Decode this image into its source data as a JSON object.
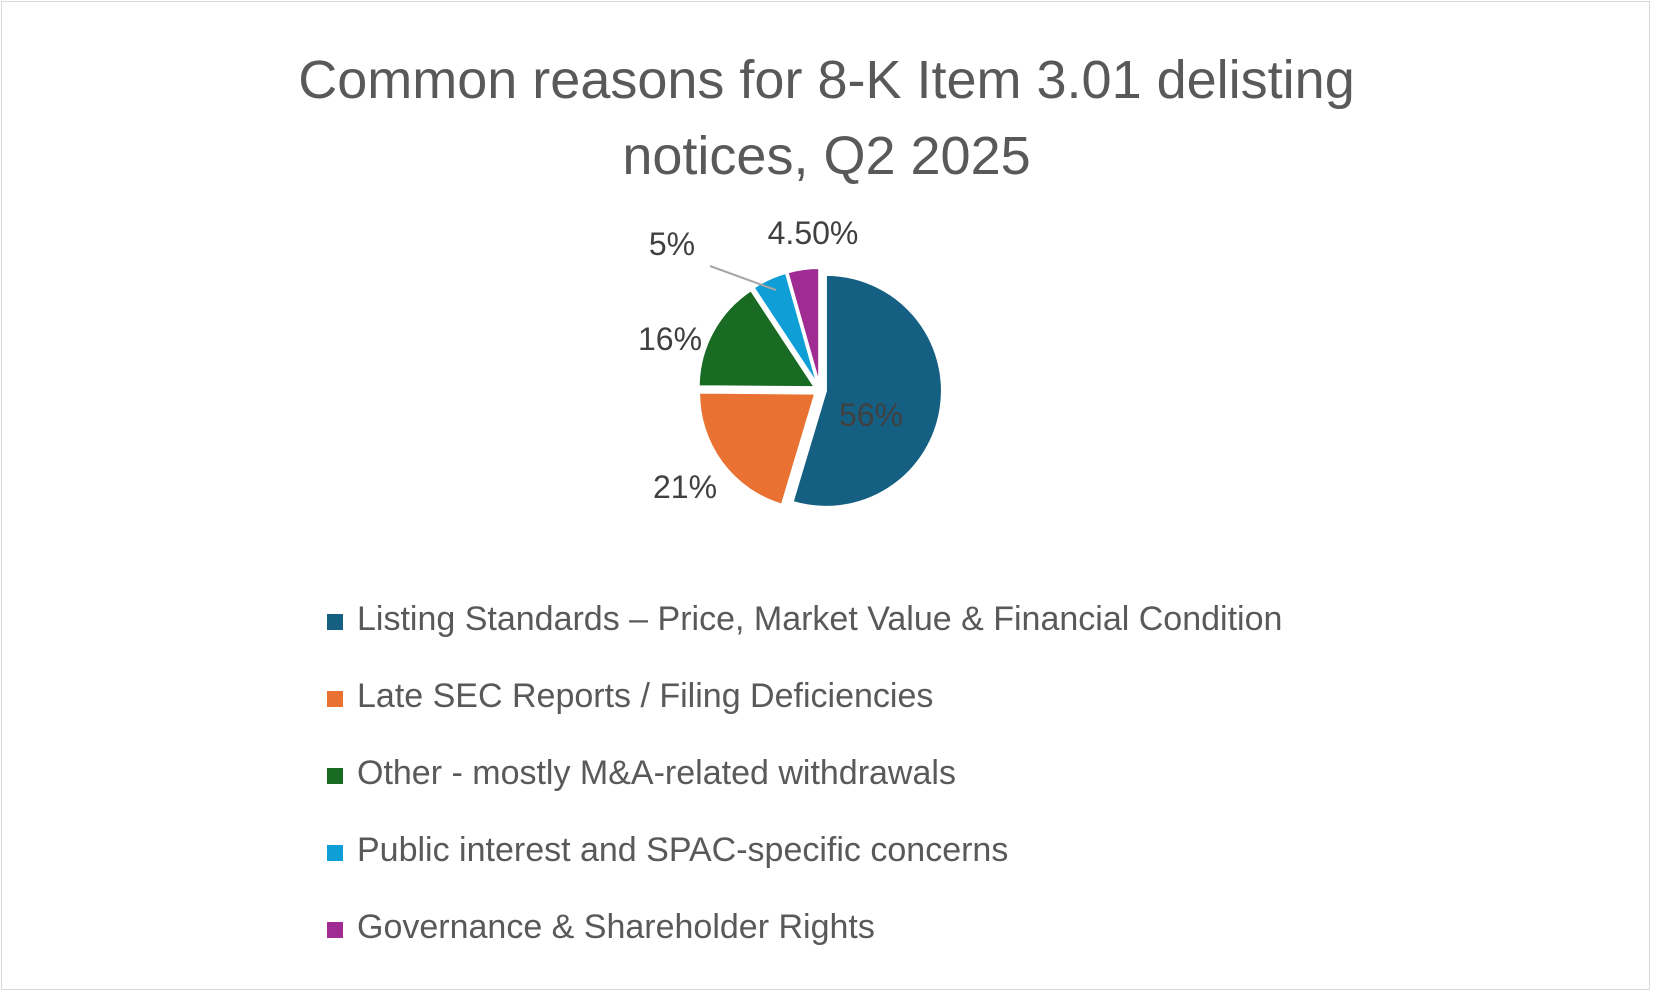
{
  "chart_data": {
    "type": "pie",
    "title": "Common reasons for 8-K Item 3.01 delisting notices, Q2 2025",
    "title_lines": [
      "Common reasons for 8-K Item 3.01 delisting",
      "notices, Q2 2025"
    ],
    "slices": [
      {
        "name": "Listing Standards – Price, Market Value & Financial Condition",
        "value": 56,
        "label": "56%",
        "color": "#156082"
      },
      {
        "name": "Late SEC Reports / Filing Deficiencies",
        "value": 21,
        "label": "21%",
        "color": "#e97132"
      },
      {
        "name": "Other - mostly M&A-related withdrawals",
        "value": 16,
        "label": "16%",
        "color": "#196b24"
      },
      {
        "name": "Public interest and SPAC-specific concerns",
        "value": 5,
        "label": "5%",
        "color": "#0f9ed5"
      },
      {
        "name": "Governance & Shareholder Rights",
        "value": 4.5,
        "label": "4.50%",
        "color": "#a02b93"
      }
    ],
    "start_angle": "12 o'clock",
    "direction": "clockwise",
    "legend_position": "bottom"
  },
  "colors": {
    "title_text": "#595959",
    "label_text": "#404040",
    "border": "#d9d9d9",
    "leader_line": "#a6a6a6"
  }
}
